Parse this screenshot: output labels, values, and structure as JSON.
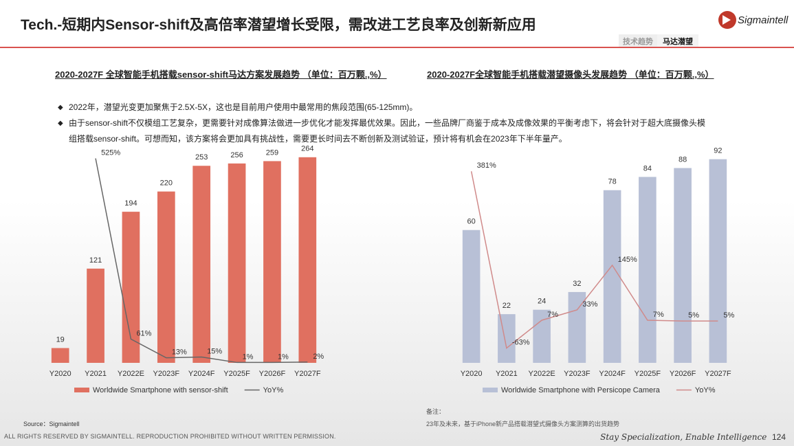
{
  "header": {
    "title": "Tech.-短期内Sensor-shift及高倍率潜望增长受限，需改进工艺良率及创新新应用",
    "logo": "Sigmaintell",
    "tabs": [
      "技术趋势",
      "马达潜望"
    ]
  },
  "bullets": [
    "2022年，潜望光变更加聚焦于2.5X-5X，这也是目前用户使用中最常用的焦段范围(65-125mm)。",
    "由于sensor-shift不仅模组工艺复杂，更需要针对成像算法做进一步优化才能发挥最优效果。因此，一些品牌厂商鉴于成本及成像效果的平衡考虑下，将会针对于超大底摄像头模组搭载sensor-shift。可想而知，该方案将会更加具有挑战性，需要更长时间去不断创新及测试验证，预计将有机会在2023年下半年量产。"
  ],
  "chart_data": [
    {
      "type": "bar_line",
      "title": "2020-2027F 全球智能手机搭载sensor-shift马达方案发展趋势 （单位：百万颗.,%）",
      "categories": [
        "Y2020",
        "Y2021",
        "Y2022E",
        "Y2023F",
        "Y2024F",
        "Y2025F",
        "Y2026F",
        "Y2027F"
      ],
      "ylim": [
        0,
        270
      ],
      "y2lim": [
        0,
        540
      ],
      "series": [
        {
          "name": "Worldwide Smartphone with sensor-shift",
          "type": "bar",
          "color": "#e07060",
          "values": [
            19,
            121,
            194,
            220,
            253,
            256,
            259,
            264
          ]
        },
        {
          "name": "YoY%",
          "type": "line",
          "axis": "y2",
          "color": "#666666",
          "values": [
            null,
            525,
            61,
            13,
            15,
            1,
            1,
            2
          ],
          "value_labels": [
            null,
            "525%",
            "61%",
            "13%",
            "15%",
            "1%",
            "1%",
            "2%"
          ]
        }
      ]
    },
    {
      "type": "bar_line",
      "title": "2020-2027F全球智能手机搭载潜望摄像头发展趋势 （单位：百万颗.,%）",
      "categories": [
        "Y2020",
        "Y2021",
        "Y2022E",
        "Y2023F",
        "Y2024F",
        "Y2025F",
        "Y2026F",
        "Y2027F"
      ],
      "ylim": [
        0,
        95
      ],
      "y2lim": [
        -100,
        428
      ],
      "series": [
        {
          "name": "Worldwide Smartphone with Persicope Camera",
          "type": "bar",
          "color": "#b8c0d6",
          "values": [
            60,
            22,
            24,
            32,
            78,
            84,
            88,
            92
          ]
        },
        {
          "name": "YoY%",
          "type": "line",
          "axis": "y2",
          "color": "#d08a8a",
          "values": [
            381,
            -63,
            7,
            33,
            145,
            7,
            5,
            5
          ],
          "value_labels": [
            "381%",
            "-63%",
            "7%",
            "33%",
            "145%",
            "7%",
            "5%",
            "5%"
          ]
        }
      ]
    }
  ],
  "source": "Source：Sigmaintell",
  "note": {
    "label": "备注：",
    "text": "23年及未来，基于iPhone新产品搭载潜望式摄像头方案测算的出货趋势"
  },
  "footer": {
    "copyright": "ALL RIGHTS RESERVED BY SIGMAINTELL. REPRODUCTION PROHIBITED WITHOUT WRITTEN PERMISSION.",
    "slogan": "Stay Specialization, Enable Intelligence",
    "page": 124
  }
}
